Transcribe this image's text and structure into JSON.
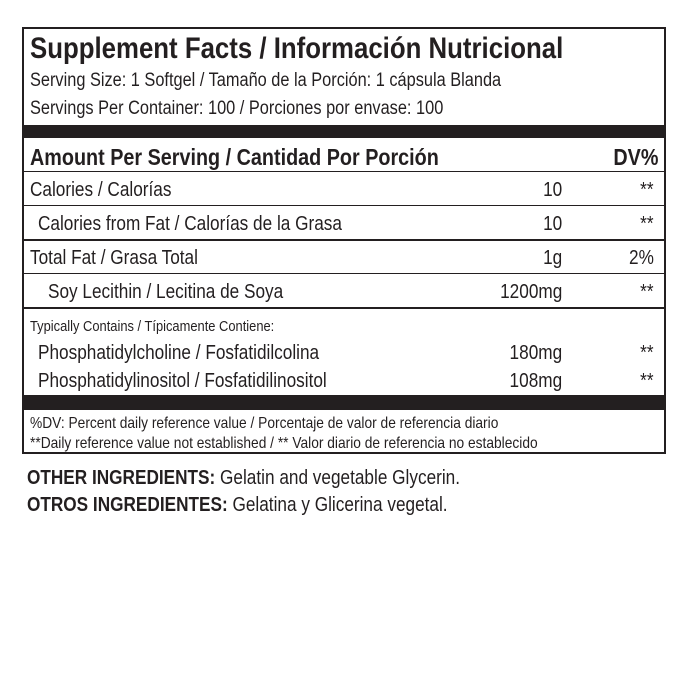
{
  "header": {
    "title": "Supplement Facts / Información Nutricional",
    "serving_size": "Serving Size: 1 Softgel / Tamaño de la Porción: 1 cápsula Blanda",
    "servings_per_container": "Servings Per Container: 100 / Porciones por envase: 100"
  },
  "table": {
    "columns": [
      "Amount Per Serving / Cantidad Por Porción",
      "DV%"
    ],
    "rows": [
      [
        "Calories / Calorías",
        "10",
        "**"
      ],
      [
        "Calories from Fat / Calorías de la Grasa",
        "10",
        "**"
      ],
      [
        "Total Fat / Grasa Total",
        "1g",
        "2%"
      ],
      [
        "Soy Lecithin / Lecitina de Soya",
        "1200mg",
        "**"
      ]
    ]
  },
  "typical": {
    "heading": "Typically Contains / Típicamente Contiene:",
    "rows": [
      [
        "Phosphatidylcholine / Fosfatidilcolina",
        "180mg",
        "**"
      ],
      [
        "Phosphatidylinositol / Fosfatidilinositol",
        "108mg",
        "**"
      ]
    ]
  },
  "footnotes": [
    "%DV: Percent daily reference value / Porcentaje de valor de referencia diario",
    "**Daily reference value not established / ** Valor diario de referencia no establecido"
  ],
  "ingredients": [
    {
      "label": "OTHER INGREDIENTS:",
      "text": "Gelatin and vegetable Glycerin."
    },
    {
      "label": "OTROS INGREDIENTES:",
      "text": "Gelatina y Glicerina vegetal."
    }
  ]
}
